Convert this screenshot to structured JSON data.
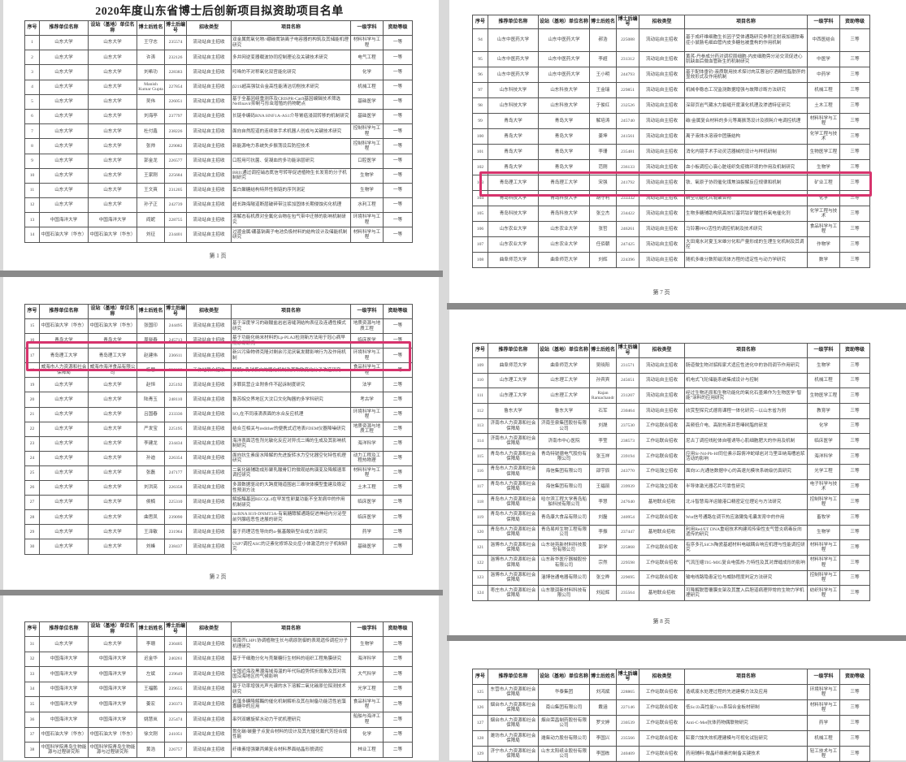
{
  "document_title": "2020年度山东省博士后创新项目拟资助项目名单",
  "headers": [
    "序号",
    "推荐单位名称",
    "设站（基地）单位名称",
    "博士后姓名",
    "博士后编号",
    "招收类型",
    "项目名称",
    "一级学科",
    "资助等级"
  ],
  "highlight_color": "#d6336c",
  "pages": [
    {
      "page_label": "第 1 页",
      "rows": [
        [
          "1",
          "山东大学",
          "山东大学",
          "王守志",
          "235574",
          "流动站自主招收",
          "双金属氮氧化物//硼碳氮钠离子电容器的构筑及其储能机理研究",
          "材料科学与工程",
          "一等"
        ],
        [
          "2",
          "山东大学",
          "山东大学",
          "许涛",
          "232126",
          "流动站自主招收",
          "多并网逆变器载波协同控制理论及关键技术研究",
          "电气工程",
          "一等"
        ],
        [
          "3",
          "山东大学",
          "山东大学",
          "刘希功",
          "228383",
          "流动站自主招收",
          "吲哚的不对称氧化双官能化研究",
          "化学",
          "一等"
        ],
        [
          "4",
          "山东大学",
          "山东大学",
          "Manish Kumar Gupta",
          "227854",
          "流动站自主招收",
          "β21S超高强钛合金高性能清洁切削技术研究",
          "机械工程",
          "一等"
        ],
        [
          "5",
          "山东大学",
          "山东大学",
          "吴伟",
          "226051",
          "流动站自主招收",
          "基于全基因组重测序及CRISPR-Cas9基因编辑技术筛选Nelfinavir抑制弓形虫增殖的药物靶点",
          "基础医学",
          "一等"
        ],
        [
          "6",
          "山东大学",
          "山东大学",
          "刘海亭",
          "237797",
          "流动站自主招收",
          "长链非编码RNA HNF1A-AS1介导胃癌浸润转移的机制研究",
          "基础医学",
          "一等"
        ],
        [
          "7",
          "山东大学",
          "山东大学",
          "杜付鑫",
          "238226",
          "流动站自主招收",
          "面向自然腔道的连续体手术机器人创成与关键技术研究",
          "控制科学与工程",
          "一等"
        ],
        [
          "8",
          "山东大学",
          "山东大学",
          "张帅",
          "229082",
          "流动站自主招收",
          "新能源电力系统失步振荡设后防控技术",
          "控制科学与工程",
          "一等"
        ],
        [
          "9",
          "山东大学",
          "山东大学",
          "郭金龙",
          "226577",
          "流动站自主招收",
          "口腔用可抗菌、促凝血的多功能涂层研究",
          "口腔医学",
          "一等"
        ],
        [
          "10",
          "山东大学",
          "山东大学",
          "王家刚",
          "225684",
          "流动站自主招收",
          "BRI1通过调控硝态氮信号转导促进植物生长发育的分子机制研究",
          "生物学",
          "一等"
        ],
        [
          "11",
          "山东大学",
          "山东大学",
          "王文爽",
          "231205",
          "流动站自主招收",
          "蛋白聚糖结构特异性侧链的序列测定",
          "生物学",
          "一等"
        ],
        [
          "12",
          "山东大学",
          "山东大学",
          "孙子正",
          "242739",
          "流动站自主招收",
          "超长跨海隧道断层破碎带注浆加固体长期侵蚀劣化机理",
          "水利工程",
          "一等"
        ],
        [
          "13",
          "中国海洋大学",
          "中国海洋大学",
          "阎妮",
          "228755",
          "流动站自主招收",
          "溶解态有机质对全氟化合物在包气带中迁移的影响机制研究",
          "环境科学与工程",
          "一等"
        ],
        [
          "14",
          "中国石油大学（华东）",
          "中国石油大学（华东）",
          "刘征",
          "234401",
          "流动站自主招收",
          "过渡金属/硼基钠离子电池负极材料的结构设计及储能机制研究",
          "材料科学与工程",
          "一等"
        ]
      ]
    },
    {
      "page_label": "第 2 页",
      "rows": [
        [
          "15",
          "中国石油大学（华东）",
          "中国石油大学（华东）",
          "张国印",
          "244495",
          "流动站自主招收",
          "基于深度学习的碳酸盐岩岩溶缝洞结构表征及连通性模式研究",
          "地质资源与地质工程",
          "一等"
        ],
        [
          "16",
          "青岛大学",
          "青岛大学",
          "周晓春",
          "245713",
          "流动站自主招收",
          "基于功能化纳米材料的Lp-PLA2检测新方法用于冠心病早期诊断研究",
          "临床医学",
          "一等"
        ],
        [
          "17",
          "青岛理工大学",
          "青岛理工大学",
          "赵建伟",
          "236611",
          "流动站自主招收",
          "新兴污染物得克隆对剩余污泥厌氧发酵影响行为及作用机制",
          "环境科学与工程",
          "一等"
        ],
        [
          "18",
          "威海市人力资源和社会保障局",
          "威海市海洋食品有限公司",
          "杨慧",
          "236182",
          "工作站联合招收",
          "酶解β-乳球蛋白的糖化机制及其致敏变化分子改造研究",
          "食品科学与工程",
          "一等"
        ],
        [
          "19",
          "山东大学",
          "山东大学",
          "赵恒",
          "225192",
          "流动站自主招收",
          "涉罪民营企业附条件不起诉制度研究",
          "法学",
          "二等"
        ],
        [
          "20",
          "山东大学",
          "山东大学",
          "陆青玉",
          "248110",
          "流动站自主招收",
          "鲁苏皖交界地区大汶口文化陶器的多学科研究",
          "考古学",
          "二等"
        ],
        [
          "21",
          "山东大学",
          "山东大学",
          "吕国春",
          "233336",
          "流动站自主招收",
          "SO₂在不同液滴表面的水合反应机理",
          "环境科学与工程",
          "二等"
        ],
        [
          "22",
          "山东大学",
          "山东大学",
          "严发宝",
          "225195",
          "流动站自主招收",
          "结合互相关与redither的便携式近地表FDEM仪器降噪研究",
          "地质资源与地质工程",
          "二等"
        ],
        [
          "23",
          "山东大学",
          "山东大学",
          "李建龙",
          "234434",
          "流动站自主招收",
          "海洋表面活性剂光敏化反应对异戊二烯的生成及其影响机制研究",
          "海洋科学",
          "二等"
        ],
        [
          "24",
          "山东大学",
          "山东大学",
          "孙迪",
          "226354",
          "流动站自主招收",
          "面向抗生素废水降解的先进旋转水力空化器空化特性机理研究",
          "动力工程及工程热物理",
          "二等"
        ],
        [
          "25",
          "山东大学",
          "山东大学",
          "张磊",
          "247177",
          "流动站自主招收",
          "二氧化碳辅助成形聚乳酸骨钉的微观结构演变及降解速率调控研究",
          "材料科学与工程",
          "二等"
        ],
        [
          "26",
          "山东大学",
          "山东大学",
          "刘洪亮",
          "226358",
          "流动站自主招收",
          "多源数据驱动的大跨度隧道围岩三维块体模型重建及稳定性预测方法",
          "土木工程",
          "二等"
        ],
        [
          "27",
          "山东大学",
          "山东大学",
          "侯楠",
          "225310",
          "流动站自主招收",
          "解旋酶基因RECQL4在早发性卵巢功能不全发病中的作用机制研究",
          "临床医学",
          "二等"
        ],
        [
          "28",
          "山东大学",
          "山东大学",
          "曲思凤",
          "239090",
          "流动站自主招收",
          "lncRNA H19-DNMT3A-有氧糖酵解通路促进神经内分泌型前列腺癌恶性进展的研究",
          "临床医学",
          "二等"
        ],
        [
          "29",
          "山东大学",
          "山东大学",
          "王泽敏",
          "231964",
          "流动站自主招收",
          "基于药理活性导向的α-氨基酸新型合成方法研究",
          "药学",
          "二等"
        ],
        [
          "30",
          "山东大学",
          "山东大学",
          "刘峰",
          "238437",
          "流动站自主招收",
          "USP7调控ASC的泛素化修饰及炎症小体激活的分子机制研究",
          "基础医学",
          "二等"
        ]
      ]
    },
    {
      "page_label": "",
      "rows": [
        [
          "31",
          "山东大学",
          "山东大学",
          "李珊",
          "230405",
          "流动站自主招收",
          "拟南芥LHP1协调植物生长与病原防御的表观遗传调控分子机理研究",
          "生物学",
          "二等"
        ],
        [
          "32",
          "中国海洋大学",
          "中国海洋大学",
          "迟金华",
          "240261",
          "流动站自主招收",
          "基于干细胞分化与壳聚糖衍生材料的组织工程角膜研究",
          "海洋科学",
          "二等"
        ],
        [
          "33",
          "中国海洋大学",
          "中国海洋大学",
          "左斌",
          "239649",
          "流动站自主招收",
          "中国近海及黑潮海域海温的年代际趋势转折现象及其对我国沿海地区的气候影响",
          "大气科学",
          "二等"
        ],
        [
          "34",
          "中国海洋大学",
          "中国海洋大学",
          "王福鹏",
          "239655",
          "流动站自主招收",
          "基于功率增强光声光谱的水下溶解二氧化碳原位探测技术研究",
          "光学工程",
          "二等"
        ],
        [
          "35",
          "中国海洋大学",
          "中国海洋大学",
          "姜宏",
          "230373",
          "流动站自主招收",
          "岩藻多糖降解酶的催化机制解析及其在制备功能活性岩藻寡糖中的应用",
          "食品科学与工程",
          "二等"
        ],
        [
          "36",
          "中国海洋大学",
          "中国海洋大学",
          "姚慧岚",
          "225474",
          "流动站自主招收",
          "串列双螺旋桨水动力干扰机理研究",
          "船舶与海洋工程",
          "二等"
        ],
        [
          "37",
          "中国石油大学（华东）",
          "中国石油大学（华东）",
          "徐文刚",
          "241051",
          "流动站自主招收",
          "氮化碳/碳量子点复合材料的设计及其光催化氟代芳烃合成性能",
          "化学",
          "二等"
        ],
        [
          "38",
          "中国科学院青岛生物能源与过程研究所",
          "中国科学院青岛生物能源与过程研究所",
          "黄浩",
          "226757",
          "流动站自主招收",
          "纤维素增强聚丙烯复合材料界面结晶形貌调控",
          "林业工程",
          "二等"
        ]
      ]
    },
    {
      "page_label": "第 7 页",
      "rows": [
        [
          "94",
          "山东中医药大学",
          "山东中医药大学",
          "郝浩",
          "225088",
          "流动站自主招收",
          "基于成纤维细胞生长因子受体通路研究参附注射液加速脓毒症小鼠肠毛细血管内皮多糖包被重构的作用机制",
          "中西医结合",
          "三等"
        ],
        [
          "95",
          "山东中医药大学",
          "山东中医药大学",
          "李超",
          "231312",
          "流动站自主招收",
          "黄芪-丹参成分药对调控周细胞-内皮细胞旁分泌交流促进心肌缺血后微血管新生的机制研究",
          "中医学",
          "三等"
        ],
        [
          "96",
          "山东中医药大学",
          "山东中医药大学",
          "王小明",
          "244793",
          "流动站自主招收",
          "基于配体垂钓-液质联用技术探讨肉苁蓉治疗酒精性脂肪肝的显效形式及作用机制",
          "中药学",
          "三等"
        ],
        [
          "97",
          "山东科技大学",
          "山东科技大学",
          "王金瑞",
          "229851",
          "流动站自主招收",
          "机械非稳态工况监测数据增强与故障诊断方法研究",
          "机械工程",
          "三等"
        ],
        [
          "98",
          "山东科技大学",
          "山东科技大学",
          "于俊红",
          "232526",
          "流动站自主招收",
          "深部页岩气藏水力裂缝开度演化机理及渗透特征研究",
          "土木工程",
          "三等"
        ],
        [
          "99",
          "青岛大学",
          "青岛大学",
          "解培涛",
          "245740",
          "流动站自主招收",
          "碳/金属复合材料的多元等离振荡设计及损耗介电调控机理",
          "材料科学与工程",
          "三等"
        ],
        [
          "100",
          "青岛大学",
          "青岛大学",
          "姜坤",
          "241561",
          "流动站自主招收",
          "离子液体水溶液中团簇结构",
          "化学工程与技术",
          "三等"
        ],
        [
          "101",
          "青岛大学",
          "青岛大学",
          "李珊",
          "235481",
          "流动站自主招收",
          "消化内镜手术手动灵活器械的设计与样机研制",
          "生物医学工程",
          "三等"
        ],
        [
          "102",
          "青岛大学",
          "青岛大学",
          "范刚",
          "236133",
          "流动站自主招收",
          "血小板调控心衰心脏组织免疫微环境的作用及机制研究",
          "生物学",
          "三等"
        ],
        [
          "103",
          "青岛理工大学",
          "青岛理工大学",
          "宋强",
          "241792",
          "流动站自主招收",
          "铁、氧原子协同催化煤焦油裂解反应规律和机制",
          "矿业工程",
          "三等"
        ],
        [
          "104",
          "青岛科技大学",
          "青岛科技大学",
          "胡守利",
          "233332",
          "流动站自主招收",
          "新型功能化共轭聚合物",
          "化学",
          "三等"
        ],
        [
          "105",
          "青岛科技大学",
          "青岛科技大学",
          "张立杰",
          "234422",
          "流动站自主招收",
          "生物多糖辅助构筑高效钌基钙钛矿酸性析氧电催化剂",
          "化学工程与技术",
          "三等"
        ],
        [
          "106",
          "山东农业大学",
          "山东农业大学",
          "张哲",
          "246261",
          "流动站自主招收",
          "马铃薯PPO活性的调控机制及技术研究",
          "食品科学与工程",
          "三等"
        ],
        [
          "107",
          "山东农业大学",
          "山东农业大学",
          "任佰朝",
          "247425",
          "流动站自主招收",
          "大田淹水对夏玉米雄分化和产量形成的生理生化机制及其调控",
          "作物学",
          "三等"
        ],
        [
          "108",
          "曲阜师范大学",
          "曲阜师范大学",
          "刘辉",
          "224396",
          "流动站自主招收",
          "随机多维分数阶磁流体方程的适定性与动力学研究",
          "数学",
          "三等"
        ]
      ]
    },
    {
      "page_label": "第 8 页",
      "rows": [
        [
          "109",
          "曲阜师范大学",
          "曲阜师范大学",
          "吴晓阳",
          "231571",
          "流动站自主招收",
          "肠道微生物对貂和家犬适应性进化中的协同调节作用研究",
          "生物学",
          "三等"
        ],
        [
          "110",
          "山东理工大学",
          "山东理工大学",
          "孙宾宾",
          "245651",
          "流动站自主招收",
          "机电式飞轮储能系统集成设计与控制",
          "机械工程",
          "三等"
        ],
        [
          "111",
          "山东理工大学",
          "山东理工大学",
          "Rajan Ramachandr",
          "231207",
          "流动站自主招收",
          "经过生物还原和生物功能化的氧化石墨烯作为生物医学“智能”涂料的应用研究",
          "生物医学工程",
          "三等"
        ],
        [
          "112",
          "鲁东大学",
          "鲁东大学",
          "石军",
          "230464",
          "流动站自主招收",
          "欣赏型探究式德育课程一体化研究—以山东省为例",
          "教育学",
          "三等"
        ],
        [
          "113",
          "济南市人力资源和社会保障局",
          "济南圣泉集团股份有限公司",
          "刘晟",
          "237530",
          "工作站联合招收",
          "高频低介电、高耐热苯并恶嗪树脂的研发",
          "化学",
          "三等"
        ],
        [
          "114",
          "济南市人力资源和社会保障局",
          "济南市中心医院",
          "李莹",
          "238573",
          "工作站联合招收",
          "尼古丁调控线粒体自噬诱导心肌细胞肥大的作用及机制",
          "临床医学",
          "三等"
        ],
        [
          "115",
          "青岛市人力资源和社会保障局",
          "青岛特锐德电气股份有限公司",
          "张玉祥",
          "239194",
          "工作站联合招收",
          "应用Sr-Nd-Pb-Hf同位素示踪俯冲蛇绿岩对马里亚纳海槽岩浆活动的影响",
          "海洋科学",
          "三等"
        ],
        [
          "116",
          "青岛市人力资源和社会保障局",
          "海信集团有限公司",
          "邵宇辰",
          "243770",
          "工作站独立招收",
          "面向5G光通信数据中心的高速光模块系统级仿真研究",
          "光学工程",
          "三等"
        ],
        [
          "117",
          "青岛市人力资源和社会保障局",
          "海信集团有限公司",
          "王福丽",
          "239939",
          "工作站独立招收",
          "半导体激光器芯片可靠性研究",
          "电子科学与技术",
          "三等"
        ],
        [
          "118",
          "青岛市人力资源和社会保障局",
          "哈尔滨工程大学青岛船舶科技有限公司",
          "李慧",
          "247640",
          "基地联合招收",
          "北斗智慧海洋运输港口精密定位理论与方法研究",
          "控制科学与工程",
          "三等"
        ],
        [
          "119",
          "青岛市人力资源和社会保障局",
          "青岛康大食品有限公司",
          "刘磊",
          "240954",
          "工作站联合招收",
          "Wnt信号通路在调节热应激獭兔毛囊发育中的作用",
          "畜牧学",
          "三等"
        ],
        [
          "120",
          "青岛市人力资源和社会保障局",
          "青岛易邦生物工程有限公司",
          "李振",
          "237447",
          "基地联合招收",
          "利用Red/ET DNA重组技术构建鸡传染性支气管炎病毒反向遗传的研究",
          "生物学",
          "三等"
        ],
        [
          "121",
          "淄博市人力资源和社会保障局",
          "山东硅苑新材料科技股份有限公司",
          "郭学",
          "225868",
          "工作站联合招收",
          "有序多孔SiCN陶瓷基超材料电磁耦合响应机理与性能调控研究",
          "材料科学与工程",
          "三等"
        ],
        [
          "122",
          "淄博市人力资源和社会保障局",
          "山东新华医疗器械股份有限公司",
          "宗然",
          "229598",
          "工作站联合招收",
          "气流压缩TIG-MIG复合电弧热-力特性及其对焊缝成形的影响",
          "材料科学与工程",
          "三等"
        ],
        [
          "123",
          "淄博市人力资源和社会保障局",
          "淄博信通电器有限公司",
          "张立晔",
          "229695",
          "工作站联合招收",
          "输电线路隐患定位与威胁程度判定方法研究",
          "控制科学与工程",
          "三等"
        ],
        [
          "124",
          "枣庄市人力资源和社会保障局",
          "山东联润新材料科技有限公司",
          "刘延辉",
          "235564",
          "基地联合招收",
          "可降解脱管覆膜支架及其置入后胆道病理异常的生物力学机理研究",
          "纺织科学与工程",
          "三等"
        ]
      ]
    },
    {
      "page_label": "",
      "rows": [
        [
          "125",
          "东营市人力资源和社会保障局",
          "华泰集团",
          "刘鸿斌",
          "228865",
          "工作站联合招收",
          "造纸废水处理过程的先进建模方法及应用",
          "环境科学与工程",
          "三等"
        ],
        [
          "126",
          "烟台市人力资源和社会保障局",
          "南山集团有限公司",
          "戴涵",
          "227146",
          "工作站联合招收",
          "低Sc/Zr高性能7xxx系铝合金板材研制",
          "材料科学与工程",
          "三等"
        ],
        [
          "127",
          "烟台市人力资源和社会保障局",
          "烟台荣昌制药股份有限公司",
          "罗文婷",
          "230539",
          "工作站联合招收",
          "Anti-C-Met抗体药物偶联物研究",
          "药学",
          "三等"
        ],
        [
          "128",
          "潍坊市人力资源和社会保障局",
          "潍柴动力股份有限公司",
          "李国兴",
          "235566",
          "工作站联合招收",
          "缸套穴蚀失效机理建模与可视化试验研究",
          "机械工程",
          "三等"
        ],
        [
          "129",
          "济宁市人力资源和社会保障局",
          "山东太阳纸业股份有限公司",
          "李国栋",
          "240409",
          "工作站联合招收",
          "药用辅料-微晶纤维素的制备关键技术",
          "轻工技术与工程",
          "三等"
        ]
      ]
    }
  ]
}
